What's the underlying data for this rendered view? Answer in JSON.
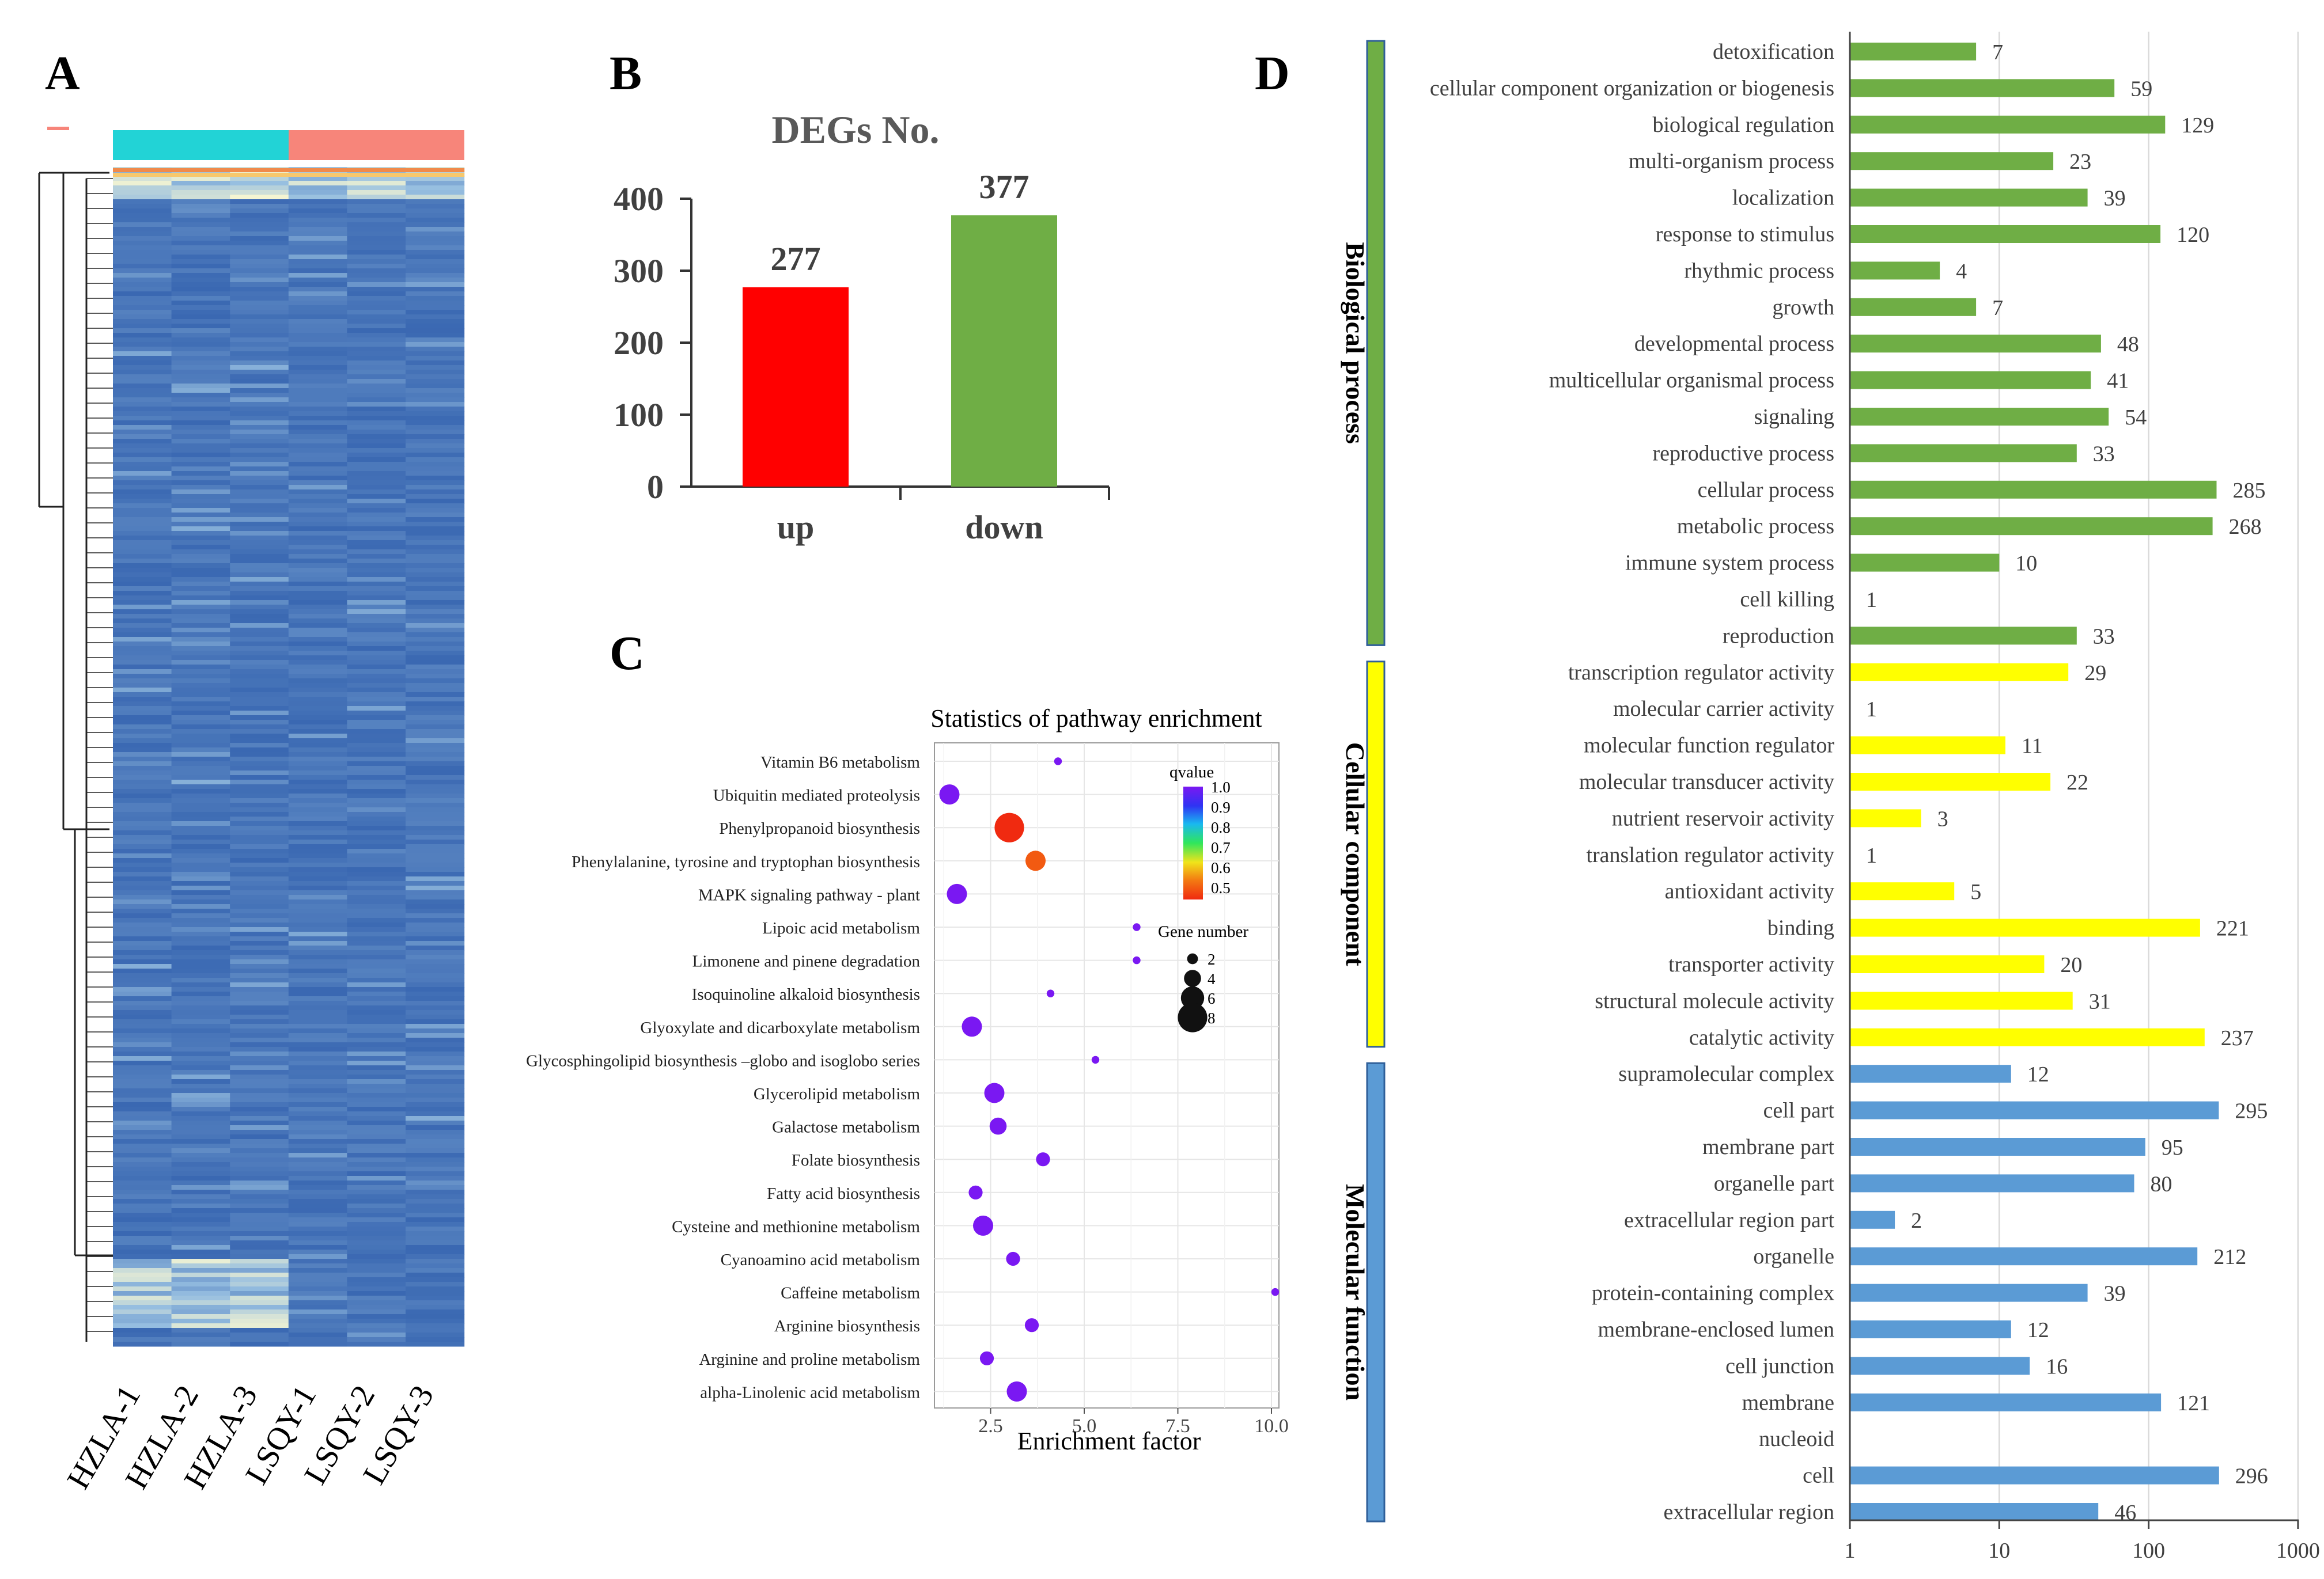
{
  "panels": {
    "a": "A",
    "b": "B",
    "c": "C",
    "d": "D"
  },
  "heatmap": {
    "samples": [
      "HZLA-1",
      "HZLA-2",
      "HZLA-3",
      "LSQY-1",
      "LSQY-2",
      "LSQY-3"
    ],
    "group_colors": [
      "#22d3d6",
      "#f7857a"
    ],
    "legend_mark_color": "#f7857a"
  },
  "chart_data": [
    {
      "type": "bar",
      "title": "DEGs No.",
      "categories": [
        "up",
        "down"
      ],
      "values": [
        277,
        377
      ],
      "colors": [
        "#ff0000",
        "#6fae45"
      ],
      "yticks": [
        0,
        100,
        200,
        300,
        400
      ],
      "ylim": [
        0,
        400
      ],
      "xlabel": "",
      "ylabel": ""
    },
    {
      "type": "scatter",
      "title": "Statistics of pathway enrichment",
      "xlabel": "Enrichment factor",
      "xticks": [
        2.5,
        5.0,
        7.5,
        10.0
      ],
      "xlim": [
        1.0,
        10.2
      ],
      "categories": [
        "Vitamin B6 metabolism",
        "Ubiquitin mediated proteolysis",
        "Phenylpropanoid biosynthesis",
        "Phenylalanine, tyrosine and tryptophan biosynthesis",
        "MAPK signaling pathway  - plant",
        "Lipoic acid metabolism",
        "Limonene and pinene degradation",
        "Isoquinoline alkaloid biosynthesis",
        "Glyoxylate and dicarboxylate metabolism",
        "Glycosphingolipid biosynthesis –globo and isoglobo series",
        "Glycerolipid metabolism",
        "Galactose metabolism",
        "Folate biosynthesis",
        "Fatty acid biosynthesis",
        "Cysteine and methionine metabolism",
        "Cyanoamino acid metabolism",
        "Caffeine metabolism",
        "Arginine biosynthesis",
        "Arginine and proline metabolism",
        "alpha-Linolenic acid metabolism"
      ],
      "enrichment": [
        4.3,
        1.4,
        3.0,
        3.7,
        1.6,
        6.4,
        6.4,
        4.1,
        2.0,
        5.3,
        2.6,
        2.7,
        3.9,
        2.1,
        2.3,
        3.1,
        10.1,
        3.6,
        2.4,
        3.2
      ],
      "gene_number": [
        1,
        5,
        8,
        5,
        5,
        1,
        1,
        1,
        5,
        1,
        5,
        4,
        3,
        3,
        5,
        3,
        1,
        3,
        3,
        5
      ],
      "qvalue": [
        1.0,
        1.0,
        0.5,
        0.55,
        1.0,
        1.0,
        1.0,
        1.0,
        1.0,
        1.0,
        1.0,
        1.0,
        1.0,
        1.0,
        1.0,
        1.0,
        1.0,
        1.0,
        1.0,
        1.0
      ],
      "color_legend": {
        "title": "qvalue",
        "ticks": [
          "1.0",
          "0.9",
          "0.8",
          "0.7",
          "0.6",
          "0.5"
        ],
        "stops": [
          "#7a18f2",
          "#2f33f3",
          "#19b8f0",
          "#2fe65c",
          "#f0e41a",
          "#f37a12",
          "#f02a10"
        ]
      },
      "size_legend": {
        "title": "Gene number",
        "values": [
          2,
          4,
          6,
          8
        ]
      }
    },
    {
      "type": "bar",
      "orientation": "horizontal",
      "xscale": "log",
      "xticks": [
        "1",
        "10",
        "100",
        "1000"
      ],
      "xlim": [
        1,
        1000
      ],
      "categories": [
        "detoxification",
        "cellular component organization or biogenesis",
        "biological regulation",
        "multi-organism process",
        "localization",
        "response to stimulus",
        "rhythmic process",
        "growth",
        "developmental process",
        "multicellular organismal process",
        "signaling",
        "reproductive process",
        "cellular process",
        "metabolic process",
        "immune system process",
        "cell killing",
        "reproduction",
        "transcription regulator activity",
        "molecular carrier activity",
        "molecular function regulator",
        "molecular transducer activity",
        "nutrient reservoir activity",
        "translation regulator activity",
        "antioxidant activity",
        "binding",
        "transporter activity",
        "structural molecule activity",
        "catalytic activity",
        "supramolecular complex",
        "cell part",
        "membrane part",
        "organelle part",
        "extracellular region part",
        "organelle",
        "protein-containing complex",
        "membrane-enclosed lumen",
        "cell junction",
        "membrane",
        "nucleoid",
        "cell",
        "extracellular region"
      ],
      "values": [
        7,
        59,
        129,
        23,
        39,
        120,
        4,
        7,
        48,
        41,
        54,
        33,
        285,
        268,
        10,
        1,
        33,
        29,
        1,
        11,
        22,
        3,
        1,
        5,
        221,
        20,
        31,
        237,
        12,
        295,
        95,
        80,
        2,
        212,
        39,
        12,
        16,
        121,
        null,
        296,
        46
      ],
      "labels": [
        "7",
        "59",
        "129",
        "23",
        "39",
        "120",
        "4",
        "7",
        "48",
        "41",
        "54",
        "33",
        "285",
        "268",
        "10",
        "1",
        "33",
        "29",
        "1",
        "11",
        "22",
        "3",
        "1",
        "5",
        "221",
        "20",
        "31",
        "237",
        "12",
        "295",
        "95",
        "80",
        "2",
        "212",
        "39",
        "12",
        "16",
        "121",
        "",
        "296",
        "46"
      ],
      "groups": [
        {
          "name": "Biological process",
          "start": 0,
          "end": 16,
          "color": "#6fae45"
        },
        {
          "name": "Cellular component",
          "start": 17,
          "end": 27,
          "color": "#ffff00"
        },
        {
          "name": "Molecular function",
          "start": 28,
          "end": 40,
          "color": "#5b9bd5"
        }
      ]
    }
  ]
}
